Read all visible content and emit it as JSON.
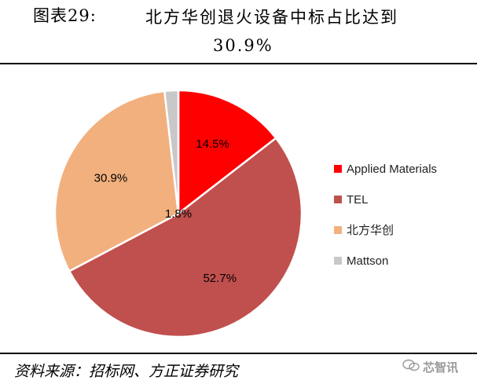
{
  "header": {
    "figure_label": "图表29:",
    "title_line1": "北方华创退火设备中标占比达到",
    "title_line2": "30.9%"
  },
  "chart_data": {
    "type": "pie",
    "title": "",
    "start_angle_deg": 0,
    "direction": "clockwise",
    "slices": [
      {
        "name": "Applied Materials",
        "value": 14.5,
        "label": "14.5%",
        "color": "#ff0000"
      },
      {
        "name": "TEL",
        "value": 52.7,
        "label": "52.7%",
        "color": "#c0504d"
      },
      {
        "name": "北方华创",
        "value": 30.9,
        "label": "30.9%",
        "color": "#f2b07e"
      },
      {
        "name": "Mattson",
        "value": 1.8,
        "label": "1.8%",
        "color": "#c8c8c8"
      }
    ],
    "legend_position": "right"
  },
  "footer": {
    "source": "资料来源：招标网、方正证券研究",
    "watermark": "芯智讯"
  }
}
